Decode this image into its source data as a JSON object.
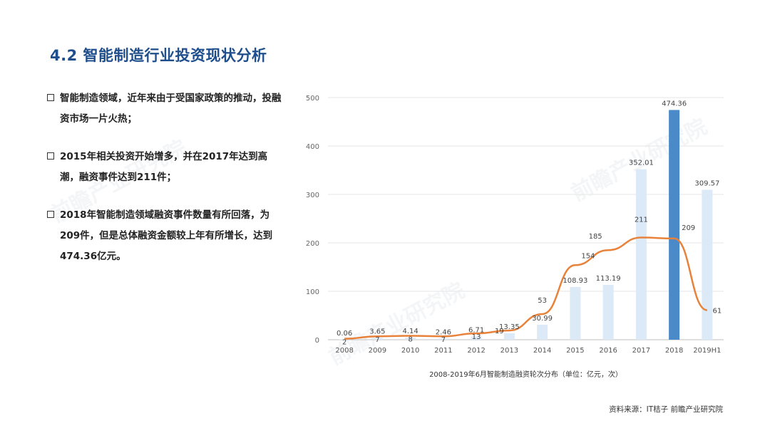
{
  "page": {
    "title": "4.2 智能制造行业投资现状分析",
    "bullets": [
      "智能制造领域，近年来由于受国家政策的推动，投融资市场一片火热；",
      "2015年相关投资开始增多，并在2017年达到高潮，融资事件达到211件；",
      "2018年智能制造领域融资事件数量有所回落，为209件，但是总体融资金额较上年有所增长，达到474.36亿元。"
    ],
    "source": "资料来源：IT桔子 前瞻产业研究院",
    "watermark": "前瞻产业研究院"
  },
  "chart_data": {
    "type": "bar",
    "title": "2008-2019年6月智能制造融资轮次分布（单位：亿元，次）",
    "categories": [
      "2008",
      "2009",
      "2010",
      "2011",
      "2012",
      "2013",
      "2014",
      "2015",
      "2016",
      "2017",
      "2018",
      "2019H1"
    ],
    "ylim": [
      0,
      500
    ],
    "yticks": [
      0,
      100,
      200,
      300,
      400,
      500
    ],
    "grid": true,
    "series": [
      {
        "type": "bar",
        "values": [
          0.06,
          3.65,
          4.14,
          2.46,
          6.71,
          13.35,
          30.99,
          108.93,
          113.19,
          352.01,
          474.36,
          309.57
        ],
        "value_labels": [
          "0.06",
          "3.65",
          "4.14",
          "2.46",
          "6.71",
          "13.35",
          "30.99",
          "108.93",
          "113.19",
          "352.01",
          "474.36",
          "309.57"
        ],
        "color": "#dce9f6",
        "highlight_index": 10,
        "highlight_color": "#4a8ac9"
      },
      {
        "type": "line",
        "values": [
          2,
          7,
          8,
          7,
          13,
          19,
          53,
          154,
          185,
          211,
          209,
          61
        ],
        "value_labels": [
          "2",
          "7",
          "8",
          "7",
          "13",
          "19",
          "53",
          "154",
          "185",
          "211",
          "209",
          "61"
        ],
        "color": "#e8823a"
      }
    ]
  }
}
